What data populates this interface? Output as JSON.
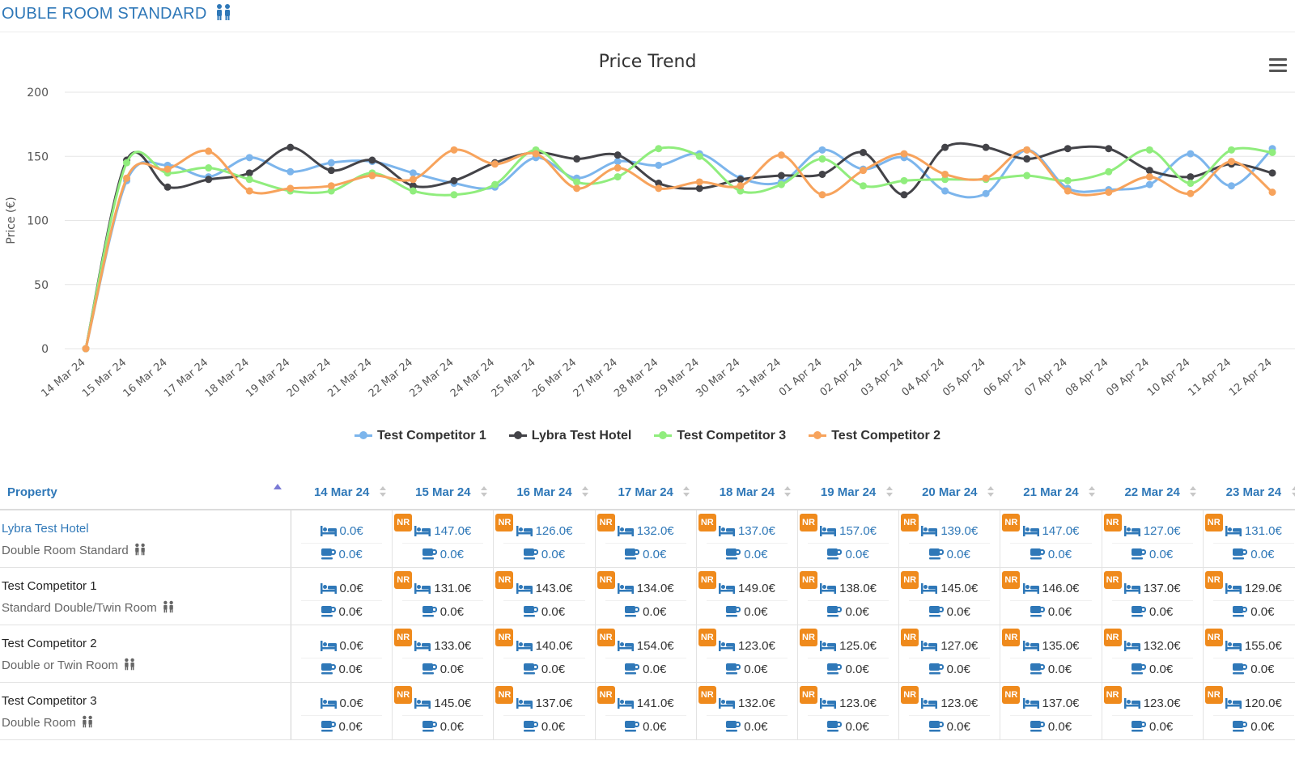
{
  "header": {
    "room_title": "OUBLE ROOM STANDARD"
  },
  "chart_data": {
    "type": "line",
    "title": "Price Trend",
    "ylabel": "Price (€)",
    "xlabel": "",
    "ylim": [
      0,
      200
    ],
    "yticks": [
      0,
      50,
      100,
      150,
      200
    ],
    "grid": true,
    "legend_position": "bottom",
    "categories": [
      "14 Mar 24",
      "15 Mar 24",
      "16 Mar 24",
      "17 Mar 24",
      "18 Mar 24",
      "19 Mar 24",
      "20 Mar 24",
      "21 Mar 24",
      "22 Mar 24",
      "23 Mar 24",
      "24 Mar 24",
      "25 Mar 24",
      "26 Mar 24",
      "27 Mar 24",
      "28 Mar 24",
      "29 Mar 24",
      "30 Mar 24",
      "31 Mar 24",
      "01 Apr 24",
      "02 Apr 24",
      "03 Apr 24",
      "04 Apr 24",
      "05 Apr 24",
      "06 Apr 24",
      "07 Apr 24",
      "08 Apr 24",
      "09 Apr 24",
      "10 Apr 24",
      "11 Apr 24",
      "12 Apr 24"
    ],
    "series": [
      {
        "name": "Test Competitor 1",
        "color": "#7cb5ec",
        "values": [
          0,
          131,
          143,
          134,
          149,
          138,
          145,
          146,
          137,
          129,
          126,
          149,
          133,
          146,
          143,
          152,
          133,
          130,
          155,
          140,
          149,
          123,
          121,
          155,
          125,
          124,
          128,
          152,
          127,
          156
        ]
      },
      {
        "name": "Lybra Test Hotel",
        "color": "#434348",
        "values": [
          0,
          147,
          126,
          132,
          137,
          157,
          139,
          147,
          127,
          131,
          145,
          153,
          148,
          151,
          129,
          125,
          132,
          135,
          136,
          153,
          120,
          157,
          157,
          148,
          156,
          156,
          139,
          134,
          144,
          137
        ]
      },
      {
        "name": "Test Competitor 3",
        "color": "#90ed7d",
        "values": [
          0,
          145,
          137,
          141,
          132,
          123,
          123,
          137,
          123,
          120,
          128,
          155,
          130,
          134,
          156,
          150,
          123,
          128,
          148,
          127,
          131,
          132,
          132,
          135,
          131,
          138,
          155,
          129,
          155,
          153
        ]
      },
      {
        "name": "Test Competitor 2",
        "color": "#f7a35c",
        "values": [
          0,
          133,
          140,
          154,
          123,
          125,
          127,
          135,
          132,
          155,
          144,
          152,
          125,
          141,
          125,
          130,
          127,
          151,
          120,
          139,
          152,
          136,
          133,
          155,
          123,
          122,
          134,
          121,
          146,
          122
        ]
      }
    ]
  },
  "table": {
    "property_header": "Property",
    "dates": [
      "14 Mar 24",
      "15 Mar 24",
      "16 Mar 24",
      "17 Mar 24",
      "18 Mar 24",
      "19 Mar 24",
      "20 Mar 24",
      "21 Mar 24",
      "22 Mar 24",
      "23 Mar 24"
    ],
    "nr_label": "NR",
    "rows": [
      {
        "hotel": "Lybra Test Hotel",
        "room": "Double Room Standard",
        "style": "blue",
        "prices": [
          "0.0€",
          "147.0€",
          "126.0€",
          "132.0€",
          "137.0€",
          "157.0€",
          "139.0€",
          "147.0€",
          "127.0€",
          "131.0€"
        ],
        "breakfast": [
          "0.0€",
          "0.0€",
          "0.0€",
          "0.0€",
          "0.0€",
          "0.0€",
          "0.0€",
          "0.0€",
          "0.0€",
          "0.0€"
        ],
        "nr": [
          false,
          true,
          true,
          true,
          true,
          true,
          true,
          true,
          true,
          true
        ]
      },
      {
        "hotel": "Test Competitor 1",
        "room": "Standard Double/Twin Room",
        "style": "dark",
        "prices": [
          "0.0€",
          "131.0€",
          "143.0€",
          "134.0€",
          "149.0€",
          "138.0€",
          "145.0€",
          "146.0€",
          "137.0€",
          "129.0€"
        ],
        "breakfast": [
          "0.0€",
          "0.0€",
          "0.0€",
          "0.0€",
          "0.0€",
          "0.0€",
          "0.0€",
          "0.0€",
          "0.0€",
          "0.0€"
        ],
        "nr": [
          false,
          true,
          true,
          true,
          true,
          true,
          true,
          true,
          true,
          true
        ]
      },
      {
        "hotel": "Test Competitor 2",
        "room": "Double or Twin Room",
        "style": "dark",
        "prices": [
          "0.0€",
          "133.0€",
          "140.0€",
          "154.0€",
          "123.0€",
          "125.0€",
          "127.0€",
          "135.0€",
          "132.0€",
          "155.0€"
        ],
        "breakfast": [
          "0.0€",
          "0.0€",
          "0.0€",
          "0.0€",
          "0.0€",
          "0.0€",
          "0.0€",
          "0.0€",
          "0.0€",
          "0.0€"
        ],
        "nr": [
          false,
          true,
          true,
          true,
          true,
          true,
          true,
          true,
          true,
          true
        ]
      },
      {
        "hotel": "Test Competitor 3",
        "room": "Double Room",
        "style": "dark",
        "prices": [
          "0.0€",
          "145.0€",
          "137.0€",
          "141.0€",
          "132.0€",
          "123.0€",
          "123.0€",
          "137.0€",
          "123.0€",
          "120.0€"
        ],
        "breakfast": [
          "0.0€",
          "0.0€",
          "0.0€",
          "0.0€",
          "0.0€",
          "0.0€",
          "0.0€",
          "0.0€",
          "0.0€",
          "0.0€"
        ],
        "nr": [
          false,
          true,
          true,
          true,
          true,
          true,
          true,
          true,
          true,
          true
        ]
      }
    ]
  },
  "icons": {
    "people": "people-icon",
    "bed": "bed-icon",
    "breakfast": "coffee-cup-icon",
    "menu": "hamburger-menu-icon",
    "sort": "sort-arrows-icon"
  }
}
